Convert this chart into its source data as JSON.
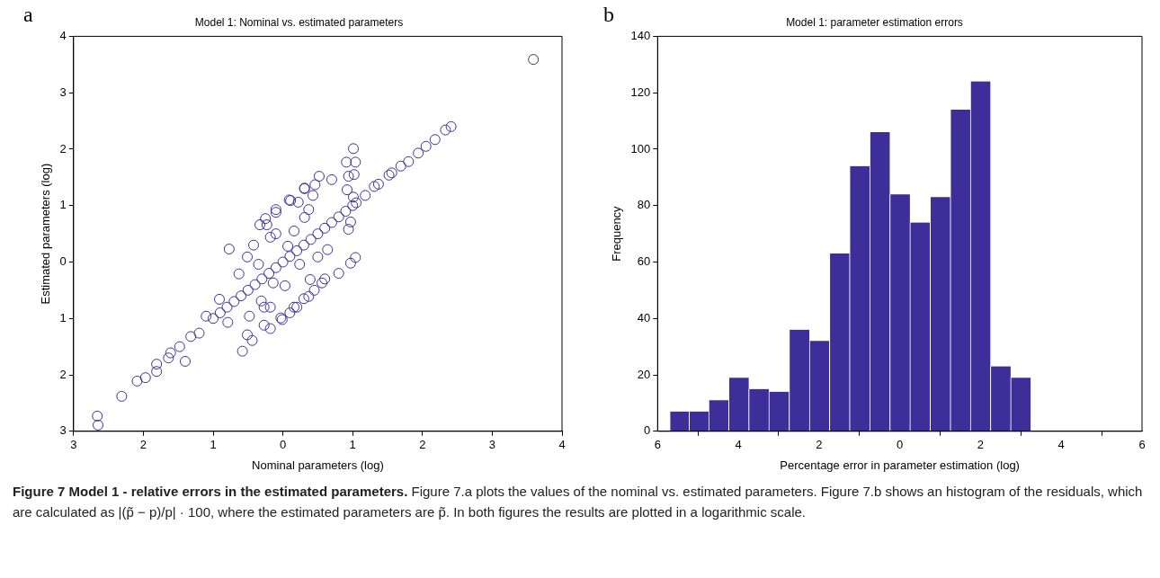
{
  "chart_data": [
    {
      "type": "scatter",
      "title": "Model 1: Nominal vs. estimated parameters",
      "xlabel": "Nominal parameters (log)",
      "ylabel": "Estimated parameters (log)",
      "annotations": [
        "a"
      ],
      "xlim": [
        -3,
        4
      ],
      "ylim": [
        -3,
        4
      ],
      "xticks": [
        {
          "value": -3,
          "label": "3"
        },
        {
          "value": -2,
          "label": "2"
        },
        {
          "value": -1,
          "label": "1"
        },
        0,
        1,
        2,
        3,
        4
      ],
      "yticks": [
        {
          "value": -3,
          "label": "3"
        },
        {
          "value": -2,
          "label": "2"
        },
        {
          "value": -1,
          "label": "1"
        },
        0,
        1,
        2,
        3,
        4
      ],
      "marker": "circle",
      "grid": false,
      "series": [
        {
          "color": "#3f3199",
          "x": [
            -2.66,
            -2.65,
            -2.31,
            -2.09,
            -1.97,
            -1.81,
            -1.81,
            -1.64,
            -1.61,
            -1.48,
            -1.4,
            -1.32,
            -1.2,
            -1.1,
            -0.91,
            -0.79,
            -0.77,
            -0.63,
            -0.58,
            -0.51,
            -0.42,
            -0.51,
            -0.44,
            -0.33,
            -0.25,
            -0.18,
            -0.1,
            -0.1,
            0.09,
            0.31,
            -0.27,
            -0.18,
            -0.01,
            0.16,
            -0.48,
            -0.31,
            -0.14,
            -0.35,
            0.07,
            -0.18,
            3.59,
            2.41,
            2.33,
            2.18,
            2.05,
            1.94,
            1.8,
            1.69,
            1.56,
            1.52,
            1.37,
            1.31,
            1.18,
            1.01,
            0.91,
            1.04,
            1.02,
            0.94,
            0.92,
            1.01,
            0.97,
            0.94,
            0.97,
            1.04,
            0.7,
            0.52,
            0.46,
            0.31,
            0.43,
            0.11,
            0.22,
            0.37,
            0.31,
            0.64,
            0.5,
            0.56,
            0.39,
            0.37,
            0.2,
            -0.03,
            0.03,
            -0.27,
            0.24,
            -0.1,
            0.16,
            -0.23,
            -1.0,
            -0.9,
            -0.8,
            -0.7,
            -0.6,
            -0.5,
            -0.4,
            -0.3,
            -0.2,
            -0.1,
            0,
            0.1,
            0.2,
            0.3,
            0.4,
            0.5,
            0.6,
            0.7,
            0.8,
            0.9,
            1.0,
            1.05,
            0.1,
            0.3,
            0.45,
            0.6,
            0.8
          ],
          "values": [
            -2.73,
            -2.89,
            -2.38,
            -2.11,
            -2.05,
            -1.81,
            -1.94,
            -1.7,
            -1.61,
            -1.5,
            -1.76,
            -1.32,
            -1.26,
            -0.96,
            -0.66,
            -1.07,
            0.23,
            -0.21,
            -1.58,
            0.09,
            0.3,
            -1.29,
            -1.39,
            0.66,
            0.77,
            0.44,
            0.88,
            0.93,
            1.1,
            1.31,
            -1.12,
            -1.18,
            -1.02,
            -0.8,
            -0.96,
            -0.69,
            -0.37,
            -0.04,
            0.28,
            -0.8,
            3.59,
            2.4,
            2.34,
            2.17,
            2.05,
            1.93,
            1.78,
            1.7,
            1.58,
            1.54,
            1.38,
            1.34,
            1.18,
            2.01,
            1.77,
            1.77,
            1.55,
            1.52,
            1.28,
            1.15,
            0.71,
            0.58,
            -0.02,
            0.08,
            1.46,
            1.52,
            1.37,
            1.3,
            1.18,
            1.09,
            1.06,
            0.93,
            0.79,
            0.22,
            0.09,
            -0.37,
            -0.31,
            -0.61,
            -0.8,
            -0.99,
            -0.42,
            -0.8,
            -0.04,
            0.5,
            0.55,
            0.66,
            -1.0,
            -0.9,
            -0.8,
            -0.7,
            -0.6,
            -0.5,
            -0.4,
            -0.3,
            -0.2,
            -0.1,
            0,
            0.1,
            0.2,
            0.3,
            0.4,
            0.5,
            0.6,
            0.7,
            0.8,
            0.9,
            1.0,
            1.05,
            -0.9,
            -0.65,
            -0.5,
            -0.3,
            -0.2
          ]
        }
      ]
    },
    {
      "type": "histogram",
      "title": "Model 1: parameter estimation errors",
      "xlabel": "Percentage error in parameter estimation (log)",
      "ylabel": "Frequency",
      "annotations": [
        "b",
        "Figure 7 Model 1 - relative errors in the estimated parameters.",
        "Figure 7.a plots the values of the nominal vs. estimated parameters.",
        "Figure 7.b shows an histogram of the residuals, which are calculated as |(p̃ − p)/p| · 100, where the estimated parameters are p̃. In both figures the results are plotted in a logarithmic scale."
      ],
      "xlim": [
        -6,
        6
      ],
      "ylim": [
        0,
        140
      ],
      "xticks": [
        {
          "value": -6,
          "label": "6"
        },
        {
          "value": -4,
          "label": "4"
        },
        {
          "value": -2,
          "label": "2"
        },
        0,
        2,
        4,
        6
      ],
      "yticks": [
        0,
        20,
        40,
        60,
        80,
        100,
        120,
        140
      ],
      "grid": false,
      "color": "#3d2e99",
      "bins": [
        -5.7,
        -5.22,
        -4.74,
        -4.24,
        -3.74,
        -3.25,
        -2.74,
        -2.24,
        -1.74,
        -1.25,
        -0.74,
        -0.25,
        0.25,
        0.75,
        1.25,
        1.75,
        2.24,
        2.75,
        3.24,
        3.74,
        4.24,
        4.74,
        5.25
      ],
      "values": [
        7,
        7,
        11,
        19,
        15,
        14,
        36,
        32,
        63,
        94,
        106,
        84,
        74,
        83,
        114,
        124,
        23,
        19,
        0,
        0,
        0,
        0
      ]
    }
  ]
}
